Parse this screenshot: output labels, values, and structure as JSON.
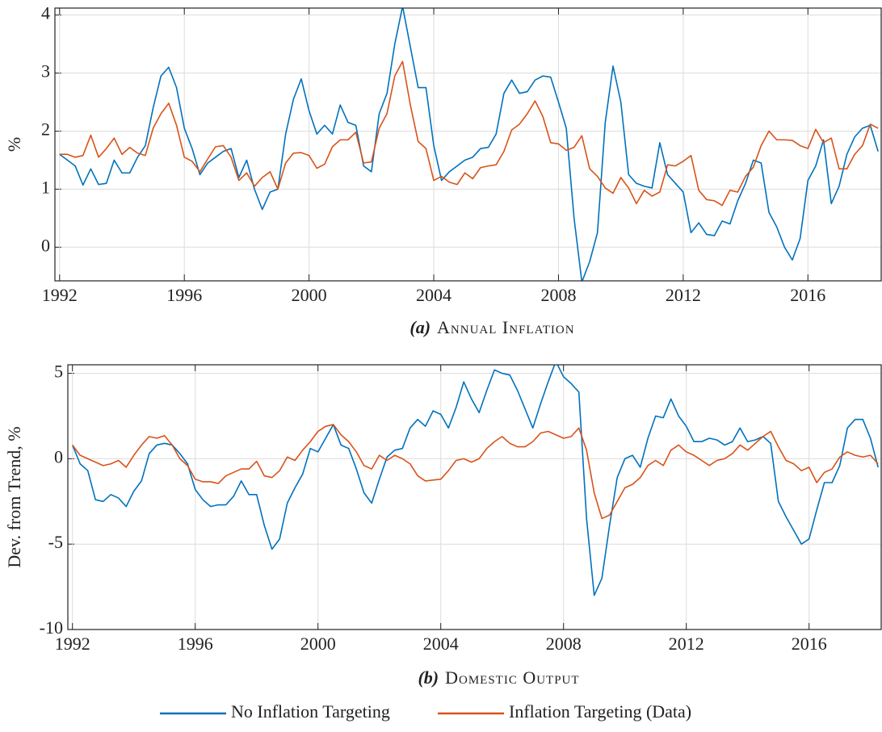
{
  "chart_data": [
    {
      "type": "line",
      "subplot_label": "(a)",
      "title": "Annual Inflation",
      "y_label": "%",
      "x": [
        1992,
        1992.25,
        1992.5,
        1992.75,
        1993,
        1993.25,
        1993.5,
        1993.75,
        1994,
        1994.25,
        1994.5,
        1994.75,
        1995,
        1995.25,
        1995.5,
        1995.75,
        1996,
        1996.25,
        1996.5,
        1996.75,
        1997,
        1997.25,
        1997.5,
        1997.75,
        1998,
        1998.25,
        1998.5,
        1998.75,
        1999,
        1999.25,
        1999.5,
        1999.75,
        2000,
        2000.25,
        2000.5,
        2000.75,
        2001,
        2001.25,
        2001.5,
        2001.75,
        2002,
        2002.25,
        2002.5,
        2002.75,
        2003,
        2003.25,
        2003.5,
        2003.75,
        2004,
        2004.25,
        2004.5,
        2004.75,
        2005,
        2005.25,
        2005.5,
        2005.75,
        2006,
        2006.25,
        2006.5,
        2006.75,
        2007,
        2007.25,
        2007.5,
        2007.75,
        2008,
        2008.25,
        2008.5,
        2008.75,
        2009,
        2009.25,
        2009.5,
        2009.75,
        2010,
        2010.25,
        2010.5,
        2010.75,
        2011,
        2011.25,
        2011.5,
        2011.75,
        2012,
        2012.25,
        2012.5,
        2012.75,
        2013,
        2013.25,
        2013.5,
        2013.75,
        2014,
        2014.25,
        2014.5,
        2014.75,
        2015,
        2015.25,
        2015.5,
        2015.75,
        2016,
        2016.25,
        2016.5,
        2016.75,
        2017,
        2017.25,
        2017.5,
        2017.75,
        2018,
        2018.25
      ],
      "series": [
        {
          "name": "No Inflation Targeting",
          "color": "#0072bd",
          "values": [
            1.6,
            1.5,
            1.4,
            1.07,
            1.35,
            1.08,
            1.1,
            1.5,
            1.28,
            1.28,
            1.55,
            1.75,
            2.4,
            2.95,
            3.1,
            2.75,
            2.05,
            1.7,
            1.25,
            1.45,
            1.55,
            1.65,
            1.7,
            1.2,
            1.5,
            1.0,
            0.65,
            0.95,
            1.0,
            1.95,
            2.55,
            2.9,
            2.35,
            1.95,
            2.1,
            1.95,
            2.45,
            2.15,
            2.1,
            1.4,
            1.3,
            2.3,
            2.65,
            3.5,
            4.15,
            3.45,
            2.75,
            2.75,
            1.75,
            1.15,
            1.3,
            1.4,
            1.5,
            1.55,
            1.7,
            1.72,
            1.95,
            2.65,
            2.88,
            2.65,
            2.68,
            2.88,
            2.95,
            2.93,
            2.5,
            2.05,
            0.5,
            -0.6,
            -0.25,
            0.25,
            2.15,
            3.12,
            2.5,
            1.25,
            1.1,
            1.05,
            1.02,
            1.8,
            1.25,
            1.1,
            0.95,
            0.25,
            0.42,
            0.22,
            0.2,
            0.45,
            0.4,
            0.8,
            1.1,
            1.5,
            1.45,
            0.6,
            0.35,
            0.0,
            -0.22,
            0.15,
            1.15,
            1.4,
            1.85,
            0.75,
            1.05,
            1.6,
            1.9,
            2.05,
            2.1,
            1.65
          ]
        },
        {
          "name": "Inflation Targeting (Data)",
          "color": "#d95319",
          "values": [
            1.6,
            1.6,
            1.55,
            1.58,
            1.93,
            1.55,
            1.7,
            1.88,
            1.6,
            1.72,
            1.62,
            1.58,
            2.05,
            2.3,
            2.48,
            2.1,
            1.55,
            1.48,
            1.3,
            1.52,
            1.73,
            1.75,
            1.55,
            1.15,
            1.28,
            1.05,
            1.2,
            1.3,
            1.0,
            1.45,
            1.62,
            1.63,
            1.58,
            1.36,
            1.43,
            1.73,
            1.85,
            1.85,
            1.98,
            1.45,
            1.47,
            2.05,
            2.3,
            2.95,
            3.2,
            2.45,
            1.82,
            1.7,
            1.15,
            1.22,
            1.12,
            1.08,
            1.28,
            1.18,
            1.37,
            1.4,
            1.42,
            1.65,
            2.02,
            2.12,
            2.3,
            2.52,
            2.25,
            1.8,
            1.78,
            1.67,
            1.72,
            1.92,
            1.35,
            1.22,
            1.02,
            0.93,
            1.2,
            1.02,
            0.75,
            0.98,
            0.88,
            0.95,
            1.42,
            1.4,
            1.48,
            1.58,
            0.98,
            0.82,
            0.8,
            0.72,
            0.98,
            0.95,
            1.22,
            1.38,
            1.75,
            2.0,
            1.85,
            1.85,
            1.84,
            1.75,
            1.7,
            2.03,
            1.8,
            1.88,
            1.35,
            1.35,
            1.6,
            1.75,
            2.12,
            2.05
          ]
        }
      ],
      "xlim": [
        1991.85,
        2018.35
      ],
      "xticks": [
        1992,
        1996,
        2000,
        2004,
        2008,
        2012,
        2016
      ],
      "ylim": [
        -0.58,
        4.12
      ],
      "yticks": [
        0,
        1,
        2,
        3,
        4
      ],
      "grid": true
    },
    {
      "type": "line",
      "subplot_label": "(b)",
      "title": "Domestic Output",
      "y_label": "Dev. from Trend, %",
      "x": [
        1992,
        1992.25,
        1992.5,
        1992.75,
        1993,
        1993.25,
        1993.5,
        1993.75,
        1994,
        1994.25,
        1994.5,
        1994.75,
        1995,
        1995.25,
        1995.5,
        1995.75,
        1996,
        1996.25,
        1996.5,
        1996.75,
        1997,
        1997.25,
        1997.5,
        1997.75,
        1998,
        1998.25,
        1998.5,
        1998.75,
        1999,
        1999.25,
        1999.5,
        1999.75,
        2000,
        2000.25,
        2000.5,
        2000.75,
        2001,
        2001.25,
        2001.5,
        2001.75,
        2002,
        2002.25,
        2002.5,
        2002.75,
        2003,
        2003.25,
        2003.5,
        2003.75,
        2004,
        2004.25,
        2004.5,
        2004.75,
        2005,
        2005.25,
        2005.5,
        2005.75,
        2006,
        2006.25,
        2006.5,
        2006.75,
        2007,
        2007.25,
        2007.5,
        2007.75,
        2008,
        2008.25,
        2008.5,
        2008.75,
        2009,
        2009.25,
        2009.5,
        2009.75,
        2010,
        2010.25,
        2010.5,
        2010.75,
        2011,
        2011.25,
        2011.5,
        2011.75,
        2012,
        2012.25,
        2012.5,
        2012.75,
        2013,
        2013.25,
        2013.5,
        2013.75,
        2014,
        2014.25,
        2014.5,
        2014.75,
        2015,
        2015.25,
        2015.5,
        2015.75,
        2016,
        2016.25,
        2016.5,
        2016.75,
        2017,
        2017.25,
        2017.5,
        2017.75,
        2018,
        2018.25
      ],
      "series": [
        {
          "name": "No Inflation Targeting",
          "color": "#0072bd",
          "values": [
            0.8,
            -0.3,
            -0.7,
            -2.4,
            -2.5,
            -2.1,
            -2.3,
            -2.8,
            -1.9,
            -1.3,
            0.3,
            0.8,
            0.9,
            0.8,
            0.3,
            -0.3,
            -1.8,
            -2.4,
            -2.8,
            -2.7,
            -2.7,
            -2.2,
            -1.3,
            -2.1,
            -2.1,
            -3.9,
            -5.3,
            -4.7,
            -2.6,
            -1.7,
            -0.9,
            0.6,
            0.4,
            1.2,
            2.0,
            0.8,
            0.6,
            -0.6,
            -2.0,
            -2.6,
            -1.2,
            0.1,
            0.5,
            0.6,
            1.8,
            2.3,
            1.9,
            2.8,
            2.6,
            1.8,
            3.0,
            4.5,
            3.5,
            2.7,
            4.0,
            5.2,
            5.0,
            4.9,
            4.0,
            2.9,
            1.8,
            3.2,
            4.5,
            5.7,
            4.8,
            4.4,
            3.9,
            -3.5,
            -8.0,
            -7.0,
            -3.9,
            -1.1,
            0.0,
            0.2,
            -0.5,
            1.2,
            2.5,
            2.4,
            3.5,
            2.5,
            1.9,
            1.0,
            1.0,
            1.2,
            1.1,
            0.8,
            1.0,
            1.8,
            1.0,
            1.1,
            1.3,
            0.9,
            -2.5,
            -3.4,
            -4.2,
            -5.0,
            -4.7,
            -3.0,
            -1.4,
            -1.4,
            -0.4,
            1.8,
            2.3,
            2.3,
            1.2,
            -0.5
          ]
        },
        {
          "name": "Inflation Targeting (Data)",
          "color": "#d95319",
          "values": [
            0.8,
            0.2,
            0.0,
            -0.2,
            -0.4,
            -0.3,
            -0.1,
            -0.5,
            0.2,
            0.8,
            1.3,
            1.2,
            1.35,
            0.8,
            0.0,
            -0.4,
            -1.2,
            -1.35,
            -1.35,
            -1.45,
            -1.0,
            -0.8,
            -0.6,
            -0.6,
            -0.15,
            -1.0,
            -1.1,
            -0.7,
            0.1,
            -0.1,
            0.5,
            1.0,
            1.6,
            1.9,
            2.0,
            1.4,
            1.0,
            0.4,
            -0.4,
            -0.6,
            0.2,
            -0.1,
            0.2,
            0.0,
            -0.3,
            -1.0,
            -1.3,
            -1.25,
            -1.2,
            -0.7,
            -0.1,
            0.0,
            -0.2,
            0.0,
            0.6,
            1.0,
            1.3,
            0.9,
            0.7,
            0.7,
            1.0,
            1.5,
            1.6,
            1.4,
            1.2,
            1.3,
            1.8,
            0.5,
            -2.0,
            -3.5,
            -3.3,
            -2.5,
            -1.7,
            -1.5,
            -1.1,
            -0.4,
            -0.1,
            -0.4,
            0.5,
            0.8,
            0.4,
            0.2,
            -0.1,
            -0.4,
            -0.1,
            0.0,
            0.3,
            0.8,
            0.5,
            0.9,
            1.3,
            1.6,
            0.7,
            -0.1,
            -0.3,
            -0.7,
            -0.5,
            -1.4,
            -0.8,
            -0.6,
            0.1,
            0.4,
            0.2,
            0.1,
            0.2,
            -0.3
          ]
        }
      ],
      "xlim": [
        1991.85,
        2018.35
      ],
      "xticks": [
        1992,
        1996,
        2000,
        2004,
        2008,
        2012,
        2016
      ],
      "ylim": [
        -10,
        5.5
      ],
      "yticks": [
        -10,
        -5,
        0,
        5
      ],
      "grid": true
    }
  ]
}
